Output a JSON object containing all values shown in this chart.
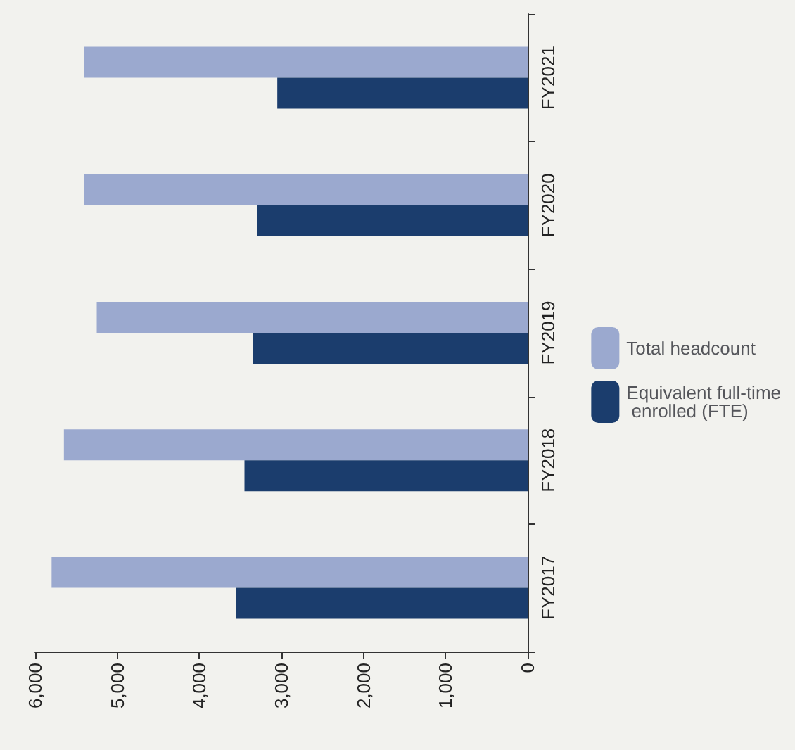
{
  "chart_data": {
    "type": "bar",
    "orientation": "horizontal",
    "categories": [
      "FY2021",
      "FY2020",
      "FY2019",
      "FY2018",
      "FY2017"
    ],
    "series": [
      {
        "name": "Total headcount",
        "color": "#9ba9cf",
        "values": [
          5400,
          5400,
          5250,
          5650,
          5800
        ]
      },
      {
        "name": "Equivalent full-time enrolled (FTE)",
        "color": "#1b3d6d",
        "values": [
          3050,
          3300,
          3350,
          3450,
          3550
        ]
      }
    ],
    "xlim": [
      6000,
      0
    ],
    "xticks": [
      {
        "value": 6000,
        "label": "6,000"
      },
      {
        "value": 5000,
        "label": "5,000"
      },
      {
        "value": 4000,
        "label": "4,000"
      },
      {
        "value": 3000,
        "label": "3,000"
      },
      {
        "value": 2000,
        "label": "2,000"
      },
      {
        "value": 1000,
        "label": "1,000"
      },
      0
    ],
    "grid": false,
    "legend": "right"
  }
}
